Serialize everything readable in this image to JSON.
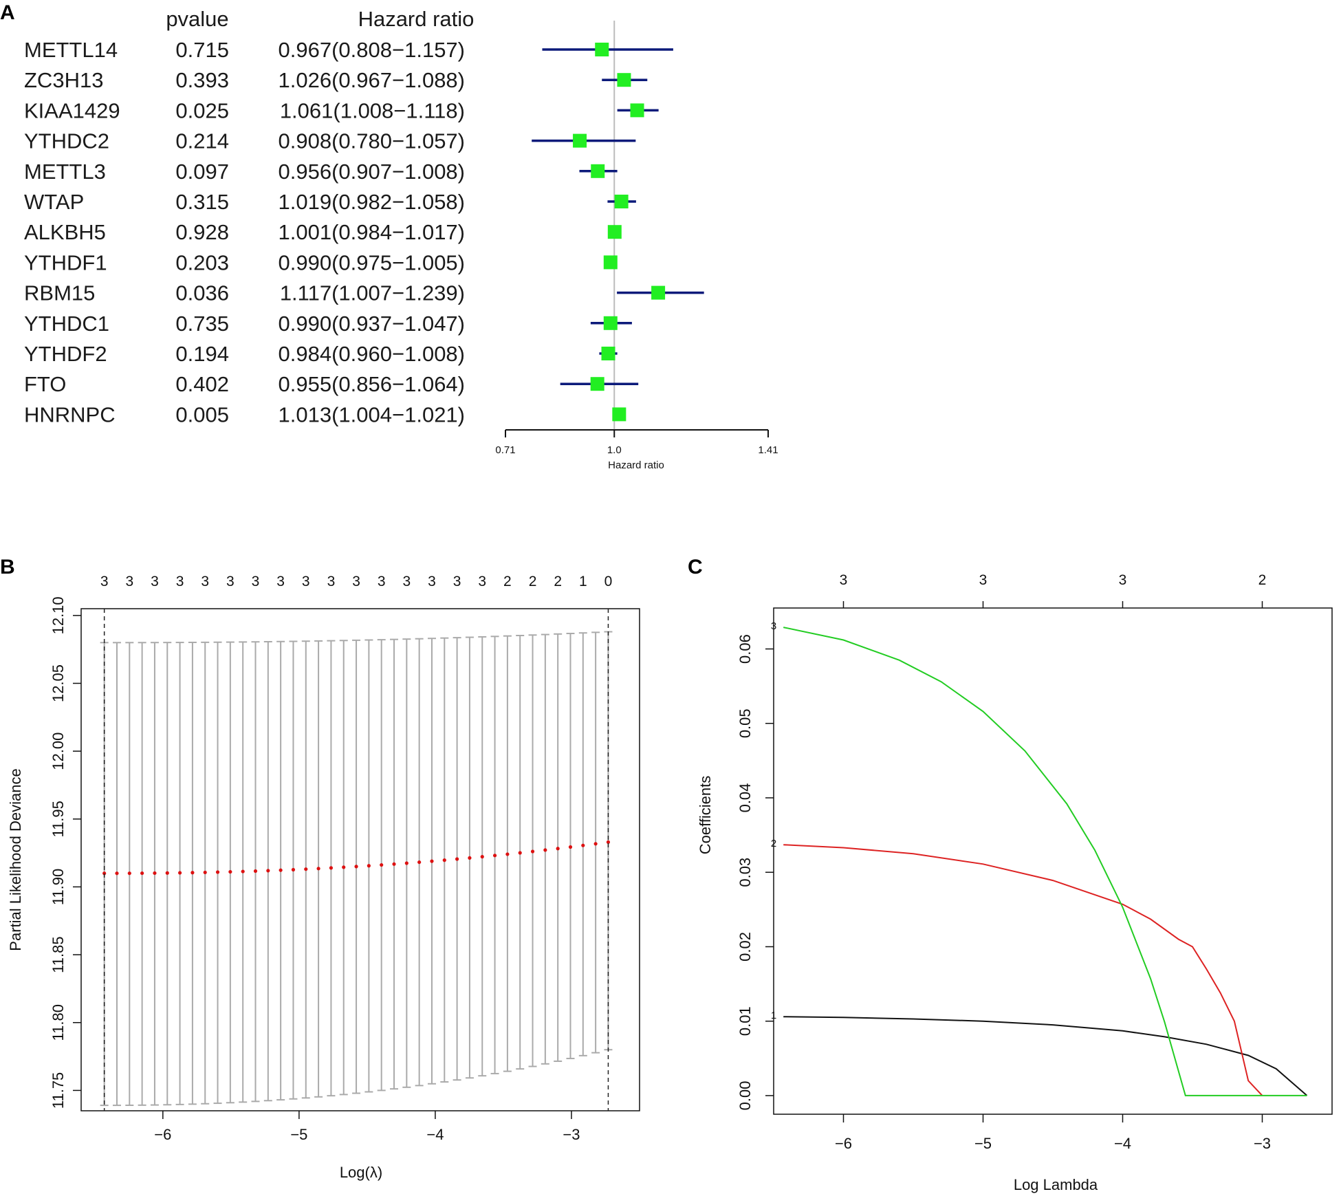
{
  "panels": {
    "a": "A",
    "b": "B",
    "c": "C"
  },
  "chart_data": [
    {
      "type": "forest",
      "panel": "A",
      "header_pvalue": "pvalue",
      "header_hr": "Hazard ratio",
      "xlabel": "Hazard ratio",
      "xticks": [
        "0.71",
        "1.0",
        "1.41"
      ],
      "xtick_values": [
        0.71,
        1.0,
        1.41
      ],
      "xlim": [
        0.71,
        1.41
      ],
      "reference": 1.0,
      "rows": [
        {
          "gene": "METTL14",
          "pvalue": "0.715",
          "hr_text": "0.967(0.808−1.157)",
          "hr": 0.967,
          "lo": 0.808,
          "hi": 1.157
        },
        {
          "gene": "ZC3H13",
          "pvalue": "0.393",
          "hr_text": "1.026(0.967−1.088)",
          "hr": 1.026,
          "lo": 0.967,
          "hi": 1.088
        },
        {
          "gene": "KIAA1429",
          "pvalue": "0.025",
          "hr_text": "1.061(1.008−1.118)",
          "hr": 1.061,
          "lo": 1.008,
          "hi": 1.118
        },
        {
          "gene": "YTHDC2",
          "pvalue": "0.214",
          "hr_text": "0.908(0.780−1.057)",
          "hr": 0.908,
          "lo": 0.78,
          "hi": 1.057
        },
        {
          "gene": "METTL3",
          "pvalue": "0.097",
          "hr_text": "0.956(0.907−1.008)",
          "hr": 0.956,
          "lo": 0.907,
          "hi": 1.008
        },
        {
          "gene": "WTAP",
          "pvalue": "0.315",
          "hr_text": "1.019(0.982−1.058)",
          "hr": 1.019,
          "lo": 0.982,
          "hi": 1.058
        },
        {
          "gene": "ALKBH5",
          "pvalue": "0.928",
          "hr_text": "1.001(0.984−1.017)",
          "hr": 1.001,
          "lo": 0.984,
          "hi": 1.017
        },
        {
          "gene": "YTHDF1",
          "pvalue": "0.203",
          "hr_text": "0.990(0.975−1.005)",
          "hr": 0.99,
          "lo": 0.975,
          "hi": 1.005
        },
        {
          "gene": "RBM15",
          "pvalue": "0.036",
          "hr_text": "1.117(1.007−1.239)",
          "hr": 1.117,
          "lo": 1.007,
          "hi": 1.239
        },
        {
          "gene": "YTHDC1",
          "pvalue": "0.735",
          "hr_text": "0.990(0.937−1.047)",
          "hr": 0.99,
          "lo": 0.937,
          "hi": 1.047
        },
        {
          "gene": "YTHDF2",
          "pvalue": "0.194",
          "hr_text": "0.984(0.960−1.008)",
          "hr": 0.984,
          "lo": 0.96,
          "hi": 1.008
        },
        {
          "gene": "FTO",
          "pvalue": "0.402",
          "hr_text": "0.955(0.856−1.064)",
          "hr": 0.955,
          "lo": 0.856,
          "hi": 1.064
        },
        {
          "gene": "HNRNPC",
          "pvalue": "0.005",
          "hr_text": "1.013(1.004−1.021)",
          "hr": 1.013,
          "lo": 1.004,
          "hi": 1.021
        }
      ],
      "colors": {
        "ci": "#0c1a7a",
        "point": "#22ee22",
        "ref": "#bbbbbb"
      }
    },
    {
      "type": "errorbar",
      "panel": "B",
      "xlabel": "Log(λ)",
      "ylabel": "Partial Likelihood Deviance",
      "xlim": [
        -6.6,
        -2.5
      ],
      "ylim": [
        11.735,
        12.105
      ],
      "xticks": [
        -6,
        -5,
        -4,
        -3
      ],
      "xtick_labels": [
        "−6",
        "−5",
        "−4",
        "−3"
      ],
      "yticks": [
        11.75,
        11.8,
        11.85,
        11.9,
        11.95,
        12.0,
        12.05,
        12.1
      ],
      "ytick_labels": [
        "11.75",
        "11.80",
        "11.85",
        "11.90",
        "11.95",
        "12.00",
        "12.05",
        "12.10"
      ],
      "top_counts": [
        "3",
        "3",
        "3",
        "3",
        "3",
        "3",
        "3",
        "3",
        "3",
        "3",
        "3",
        "3",
        "3",
        "3",
        "3",
        "3",
        "2",
        "2",
        "2",
        "1",
        "0"
      ],
      "top_count_x": [
        -6.43,
        -6.245,
        -6.06,
        -5.875,
        -5.69,
        -5.505,
        -5.32,
        -5.135,
        -4.95,
        -4.765,
        -4.58,
        -4.395,
        -4.21,
        -4.025,
        -3.84,
        -3.655,
        -3.47,
        -3.285,
        -3.1,
        -2.915,
        -2.73
      ],
      "lambda_min": -6.43,
      "lambda_1se": -2.73,
      "n_points": 41,
      "log_lambda_range": [
        -6.43,
        -2.73
      ],
      "mean_start": 11.91,
      "mean_end": 11.933,
      "upper_start": 12.08,
      "upper_end": 12.088,
      "lower_start": 11.739,
      "lower_end": 11.78,
      "colors": {
        "mean": "#dd1111",
        "bars": "#aaaaaa",
        "dashed": "#222222"
      }
    },
    {
      "type": "line",
      "panel": "C",
      "xlabel": "Log Lambda",
      "ylabel": "Coefficients",
      "xlim": [
        -6.5,
        -2.5
      ],
      "ylim": [
        -0.0025,
        0.0655
      ],
      "xticks": [
        -6,
        -5,
        -4,
        -3
      ],
      "xtick_labels": [
        "−6",
        "−5",
        "−4",
        "−3"
      ],
      "yticks": [
        0.0,
        0.01,
        0.02,
        0.03,
        0.04,
        0.05,
        0.06
      ],
      "ytick_labels": [
        "0.00",
        "0.01",
        "0.02",
        "0.03",
        "0.04",
        "0.05",
        "0.06"
      ],
      "top_counts": [
        "3",
        "3",
        "3",
        "2"
      ],
      "top_count_x": [
        -6,
        -5,
        -4,
        -3
      ],
      "series": [
        {
          "name": "1",
          "color": "#111111",
          "x": [
            -6.43,
            -6.0,
            -5.5,
            -5.0,
            -4.5,
            -4.0,
            -3.7,
            -3.4,
            -3.1,
            -2.9,
            -2.68
          ],
          "y": [
            0.0106,
            0.0105,
            0.0103,
            0.01,
            0.0095,
            0.0087,
            0.0079,
            0.0069,
            0.0054,
            0.0036,
            0.0
          ]
        },
        {
          "name": "2",
          "color": "#dd2222",
          "x": [
            -6.43,
            -6.0,
            -5.5,
            -5.0,
            -4.5,
            -4.0,
            -3.8,
            -3.6,
            -3.5,
            -3.4,
            -3.3,
            -3.2,
            -3.1,
            -3.0
          ],
          "y": [
            0.0337,
            0.0333,
            0.0325,
            0.0311,
            0.0289,
            0.0257,
            0.0237,
            0.021,
            0.02,
            0.017,
            0.0138,
            0.01,
            0.002,
            0.0
          ]
        },
        {
          "name": "3",
          "color": "#22cc22",
          "x": [
            -6.43,
            -6.0,
            -5.6,
            -5.3,
            -5.0,
            -4.7,
            -4.4,
            -4.2,
            -4.0,
            -3.8,
            -3.7,
            -3.55,
            -3.4,
            -2.68
          ],
          "y": [
            0.0629,
            0.0612,
            0.0585,
            0.0556,
            0.0516,
            0.0463,
            0.0392,
            0.033,
            0.0253,
            0.0157,
            0.0099,
            0.0,
            0.0,
            0.0
          ]
        }
      ]
    }
  ]
}
